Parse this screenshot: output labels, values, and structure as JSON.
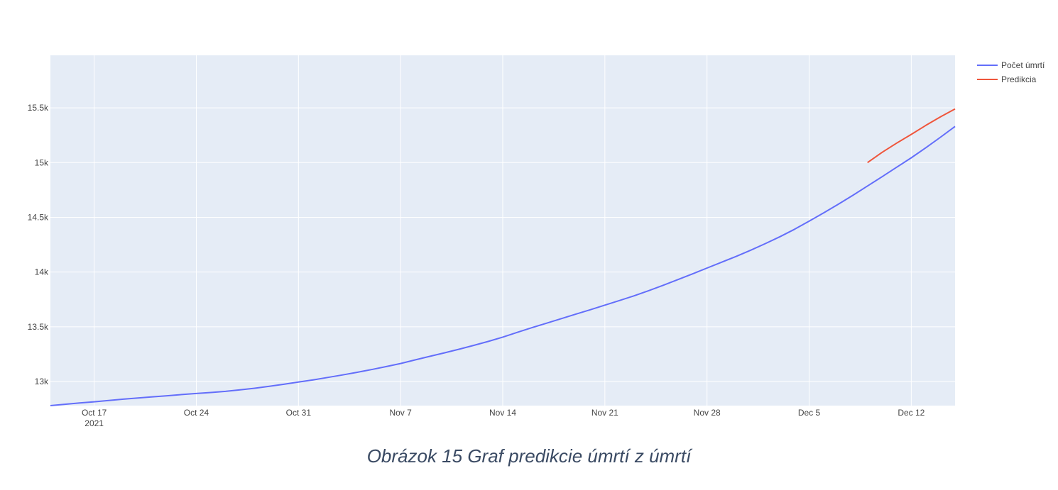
{
  "caption": "Obrázok 15 Graf predikcie úmrtí z úmrtí",
  "chart_data": {
    "type": "line",
    "title": "",
    "xlabel": "",
    "ylabel": "",
    "x_range": [
      "2021-10-14",
      "2021-12-15"
    ],
    "ylim": [
      12780,
      15980
    ],
    "x_ticks": [
      {
        "date": "2021-10-17",
        "label": "Oct 17",
        "sublabel": "2021"
      },
      {
        "date": "2021-10-24",
        "label": "Oct 24"
      },
      {
        "date": "2021-10-31",
        "label": "Oct 31"
      },
      {
        "date": "2021-11-07",
        "label": "Nov 7"
      },
      {
        "date": "2021-11-14",
        "label": "Nov 14"
      },
      {
        "date": "2021-11-21",
        "label": "Nov 21"
      },
      {
        "date": "2021-11-28",
        "label": "Nov 28"
      },
      {
        "date": "2021-12-05",
        "label": "Dec 5"
      },
      {
        "date": "2021-12-12",
        "label": "Dec 12"
      }
    ],
    "y_ticks": [
      {
        "value": 13000,
        "label": "13k"
      },
      {
        "value": 13500,
        "label": "13.5k"
      },
      {
        "value": 14000,
        "label": "14k"
      },
      {
        "value": 14500,
        "label": "14.5k"
      },
      {
        "value": 15000,
        "label": "15k"
      },
      {
        "value": 15500,
        "label": "15.5k"
      }
    ],
    "grid": true,
    "legend_position": "top-right",
    "plot_bg": "#e5ecf6",
    "series": [
      {
        "name": "Počet úmrtí",
        "color": "#636efa",
        "x": [
          "2021-10-14",
          "2021-10-15",
          "2021-10-16",
          "2021-10-17",
          "2021-10-18",
          "2021-10-19",
          "2021-10-20",
          "2021-10-21",
          "2021-10-22",
          "2021-10-23",
          "2021-10-24",
          "2021-10-25",
          "2021-10-26",
          "2021-10-27",
          "2021-10-28",
          "2021-10-29",
          "2021-10-30",
          "2021-10-31",
          "2021-11-01",
          "2021-11-02",
          "2021-11-03",
          "2021-11-04",
          "2021-11-05",
          "2021-11-06",
          "2021-11-07",
          "2021-11-08",
          "2021-11-09",
          "2021-11-10",
          "2021-11-11",
          "2021-11-12",
          "2021-11-13",
          "2021-11-14",
          "2021-11-15",
          "2021-11-16",
          "2021-11-17",
          "2021-11-18",
          "2021-11-19",
          "2021-11-20",
          "2021-11-21",
          "2021-11-22",
          "2021-11-23",
          "2021-11-24",
          "2021-11-25",
          "2021-11-26",
          "2021-11-27",
          "2021-11-28",
          "2021-11-29",
          "2021-11-30",
          "2021-12-01",
          "2021-12-02",
          "2021-12-03",
          "2021-12-04",
          "2021-12-05",
          "2021-12-06",
          "2021-12-07",
          "2021-12-08",
          "2021-12-09",
          "2021-12-10",
          "2021-12-11",
          "2021-12-12",
          "2021-12-13",
          "2021-12-14",
          "2021-12-15"
        ],
        "values": [
          12780,
          12792,
          12804,
          12815,
          12827,
          12839,
          12850,
          12860,
          12870,
          12881,
          12891,
          12900,
          12910,
          12924,
          12939,
          12956,
          12975,
          12995,
          13015,
          13037,
          13060,
          13084,
          13109,
          13136,
          13165,
          13198,
          13230,
          13262,
          13295,
          13330,
          13366,
          13406,
          13449,
          13492,
          13533,
          13574,
          13615,
          13656,
          13698,
          13740,
          13783,
          13830,
          13879,
          13931,
          13983,
          14037,
          14090,
          14143,
          14200,
          14260,
          14323,
          14391,
          14465,
          14541,
          14620,
          14701,
          14786,
          14871,
          14958,
          15044,
          15136,
          15232,
          15330
        ]
      },
      {
        "name": "Predikcia",
        "color": "#ef553b",
        "x": [
          "2021-12-09",
          "2021-12-10",
          "2021-12-11",
          "2021-12-12",
          "2021-12-13",
          "2021-12-14",
          "2021-12-15"
        ],
        "values": [
          15000,
          15094,
          15178,
          15258,
          15340,
          15418,
          15490
        ]
      }
    ]
  }
}
